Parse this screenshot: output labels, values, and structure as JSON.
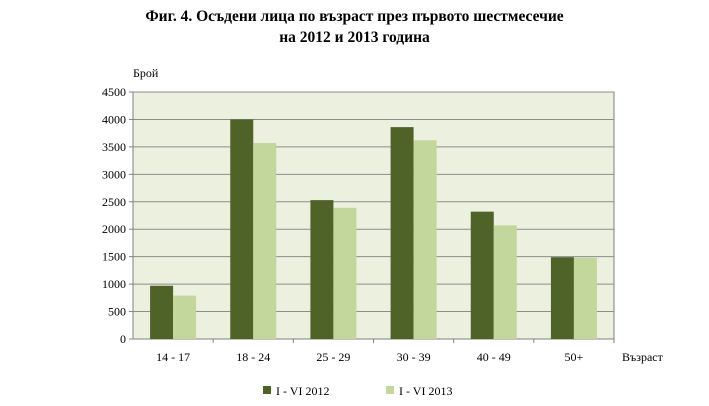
{
  "chart_data": {
    "type": "bar",
    "title_lines": [
      "Фиг. 4. Осъдени лица по възраст през първото шестмесечие",
      "на 2012 и 2013 година"
    ],
    "ylabel": "Брой",
    "xlabel": "Възраст",
    "ylim": [
      0,
      4500
    ],
    "yticks": [
      0,
      500,
      1000,
      1500,
      2000,
      2500,
      3000,
      3500,
      4000,
      4500
    ],
    "grid": true,
    "legend_position": "bottom",
    "categories": [
      "14 - 17",
      "18 - 24",
      "25 - 29",
      "30 - 39",
      "40 - 49",
      "50+"
    ],
    "series": [
      {
        "name": "I - VI 2012",
        "color": "#4f6228",
        "values": [
          970,
          4000,
          2530,
          3860,
          2320,
          1490
        ]
      },
      {
        "name": "I - VI 2013",
        "color": "#c3d69b",
        "values": [
          790,
          3570,
          2390,
          3620,
          2070,
          1480
        ]
      }
    ],
    "plot_background": "#ebf1de"
  }
}
